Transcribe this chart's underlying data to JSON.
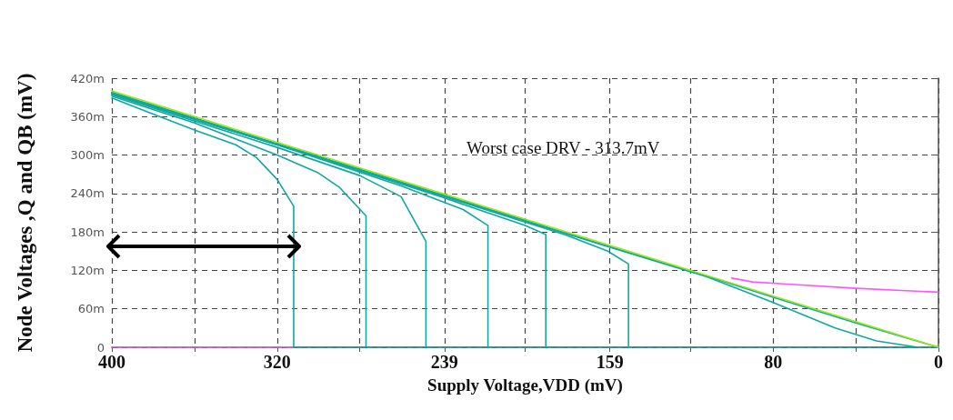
{
  "chart_data": {
    "type": "line",
    "xlabel": "Supply Voltage,VDD (mV)",
    "ylabel": "Node Voltages ,Q and QB (mV)",
    "annotations": [
      "Worst case DRV - 313.7mV"
    ],
    "xlim": [
      400,
      0
    ],
    "xticks": [
      400,
      {
        "value": 360,
        "label": null
      },
      320,
      {
        "value": 280,
        "label": null
      },
      239,
      {
        "value": 200,
        "label": null
      },
      159,
      {
        "value": 120,
        "label": null
      },
      80,
      {
        "value": 40,
        "label": null
      },
      0
    ],
    "ylim": [
      0,
      420
    ],
    "yticks": [
      {
        "value": 0,
        "label": "0"
      },
      {
        "value": 60,
        "label": "60m"
      },
      {
        "value": 120,
        "label": "120m"
      },
      {
        "value": 180,
        "label": "180m"
      },
      {
        "value": 240,
        "label": "240m"
      },
      {
        "value": 300,
        "label": "300m"
      },
      {
        "value": 360,
        "label": "360m"
      },
      {
        "value": 420,
        "label": "420m"
      }
    ],
    "grid": true,
    "marker": "none",
    "line_style": "solid",
    "series": [
      {
        "color": "#ff55ff",
        "x": [
          400,
          312
        ],
        "values": [
          0,
          0
        ]
      },
      {
        "color": "#ff55ff",
        "x": [
          100,
          90,
          75,
          40,
          0
        ],
        "values": [
          108,
          102,
          99,
          92,
          86
        ]
      },
      {
        "color": "#10a8a0",
        "x": [
          400,
          380,
          360,
          340,
          330,
          320,
          312,
          312,
          0
        ],
        "values": [
          389,
          364,
          339,
          316,
          296,
          262,
          220,
          0,
          0
        ]
      },
      {
        "color": "#10a8a0",
        "x": [
          400,
          360,
          320,
          300,
          290,
          277,
          277
        ],
        "values": [
          392,
          350,
          300,
          272,
          250,
          205,
          0
        ]
      },
      {
        "color": "#10a8a0",
        "x": [
          400,
          320,
          280,
          260,
          248,
          248
        ],
        "values": [
          394,
          312,
          268,
          235,
          165,
          0
        ]
      },
      {
        "color": "#10a8a0",
        "x": [
          400,
          320,
          260,
          230,
          218,
          218
        ],
        "values": [
          395,
          316,
          252,
          215,
          190,
          0
        ]
      },
      {
        "color": "#10a8a0",
        "x": [
          400,
          300,
          240,
          200,
          190,
          190
        ],
        "values": [
          396,
          296,
          234,
          190,
          176,
          0
        ]
      },
      {
        "color": "#10a8a0",
        "x": [
          400,
          240,
          180,
          160,
          150,
          150
        ],
        "values": [
          397,
          236,
          175,
          150,
          130,
          0
        ]
      },
      {
        "color": "#10a8a0",
        "x": [
          400,
          160,
          112,
          80,
          50,
          30,
          10
        ],
        "values": [
          398,
          157,
          110,
          70,
          30,
          10,
          0
        ]
      },
      {
        "color": "#10a8a0",
        "x": [
          400,
          240,
          160,
          112,
          80,
          40,
          0
        ],
        "values": [
          397,
          238,
          158,
          111,
          78,
          38,
          0
        ]
      },
      {
        "color": "#99e619",
        "x": [
          400,
          0
        ],
        "values": [
          400,
          0
        ]
      }
    ]
  }
}
